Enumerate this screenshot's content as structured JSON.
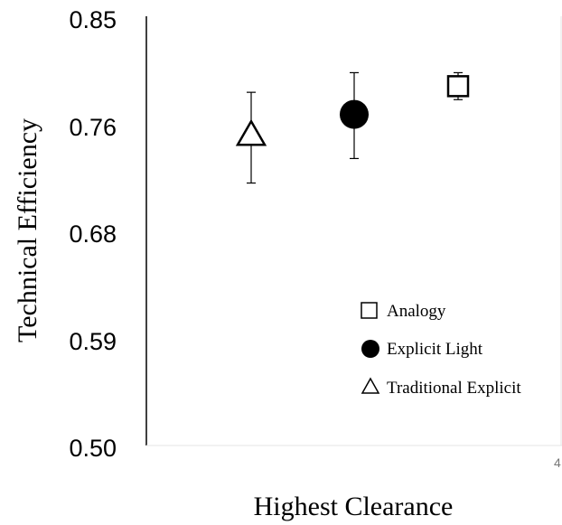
{
  "chart_data": {
    "type": "scatter",
    "xlabel": "Highest Clearance",
    "ylabel": "Technical Efficiency",
    "ylim": [
      0.5,
      0.85
    ],
    "yticks": [
      "0.85",
      "0.76",
      "0.68",
      "0.59",
      "0.50"
    ],
    "stray_tick_label": "4",
    "legend_position": "bottom-right",
    "grid": false,
    "series": [
      {
        "name": "Traditional Explicit",
        "marker": "triangle",
        "mean": 0.754,
        "err_low": 0.714,
        "err_high": 0.788
      },
      {
        "name": "Explicit Light",
        "marker": "circle",
        "mean": 0.77,
        "err_low": 0.734,
        "err_high": 0.804
      },
      {
        "name": "Analogy",
        "marker": "square",
        "mean": 0.793,
        "err_low": 0.782,
        "err_high": 0.804
      }
    ]
  }
}
